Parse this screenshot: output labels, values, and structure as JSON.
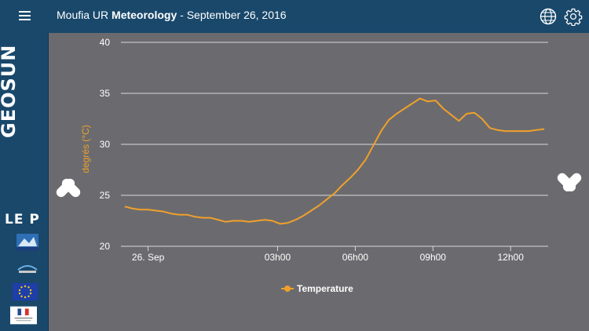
{
  "header": {
    "title_prefix": "Moufia UR ",
    "title_bold": "Meteorology",
    "title_suffix": " - September 26, 2016"
  },
  "icons": {
    "menu": "menu-icon",
    "globe": "globe-icon",
    "settings": "gear-icon",
    "prev": "pill-arrow-left-icon",
    "next": "pill-arrow-right-icon"
  },
  "sidebar": {
    "logo": "GEOSUN",
    "partner_logo": "LE P"
  },
  "colors": {
    "header_bg": "#19486b",
    "chart_bg": "#6b6b6f",
    "series": "#f0a02a",
    "grid": "#d8d8d8",
    "axis_text": "#ffffff",
    "ylabel": "#f0a02a"
  },
  "chart_data": {
    "type": "line",
    "title": "",
    "xlabel": "",
    "ylabel": "degrés (°C)",
    "ylim": [
      20,
      40
    ],
    "yticks": [
      20,
      25,
      30,
      35,
      40
    ],
    "xlim": [
      -3.05,
      13.45
    ],
    "xticks": [
      {
        "value": -2,
        "label": "26. Sep"
      },
      {
        "value": 3,
        "label": "03h00"
      },
      {
        "value": 6,
        "label": "06h00"
      },
      {
        "value": 9,
        "label": "09h00"
      },
      {
        "value": 12,
        "label": "12h00"
      }
    ],
    "series": [
      {
        "name": "Temperature",
        "x": [
          -2.9,
          -2.6,
          -2.3,
          -2.0,
          -1.7,
          -1.4,
          -1.1,
          -0.8,
          -0.5,
          -0.2,
          0.1,
          0.4,
          0.7,
          1.0,
          1.3,
          1.6,
          1.9,
          2.2,
          2.5,
          2.8,
          3.1,
          3.4,
          3.7,
          4.0,
          4.3,
          4.6,
          4.9,
          5.2,
          5.5,
          5.8,
          6.1,
          6.4,
          6.7,
          7.0,
          7.3,
          7.6,
          7.9,
          8.2,
          8.5,
          8.8,
          9.1,
          9.4,
          9.7,
          10.0,
          10.3,
          10.6,
          10.9,
          11.2,
          11.5,
          11.8,
          12.1,
          12.4,
          12.7,
          13.0,
          13.3
        ],
        "values": [
          23.9,
          23.7,
          23.6,
          23.6,
          23.5,
          23.4,
          23.2,
          23.1,
          23.1,
          22.9,
          22.8,
          22.8,
          22.6,
          22.4,
          22.5,
          22.5,
          22.4,
          22.5,
          22.6,
          22.5,
          22.2,
          22.3,
          22.6,
          23.0,
          23.5,
          24.0,
          24.6,
          25.2,
          26.0,
          26.7,
          27.5,
          28.5,
          29.9,
          31.3,
          32.4,
          33.0,
          33.5,
          34.0,
          34.5,
          34.2,
          34.3,
          33.5,
          32.9,
          32.3,
          33.0,
          33.1,
          32.5,
          31.6,
          31.4,
          31.3,
          31.3,
          31.3,
          31.3,
          31.4,
          31.5
        ]
      }
    ],
    "legend": {
      "position": "bottom-center"
    }
  }
}
